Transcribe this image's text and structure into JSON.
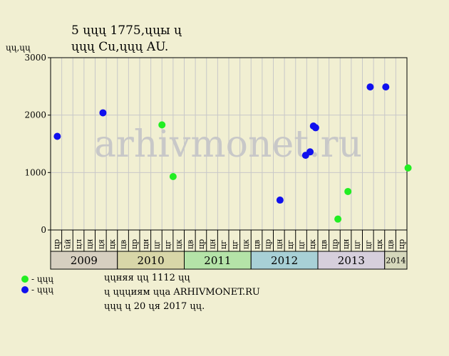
{
  "title": {
    "line1": "5 ųųų 1775,ųųы ų",
    "line2": "ųųų Cu,ųųų AU."
  },
  "legend": {
    "items": [
      {
        "label": "- ųųų",
        "color": "#22ee22"
      },
      {
        "label": "- ųųų",
        "color": "#1010ee"
      }
    ]
  },
  "notes": [
    "ųųняя ųų 1112 ųų",
    "ų ųųųиям ųųа ARHIVMONET.RU",
    "ųųų ų 20 ųя 2017 ųų."
  ],
  "watermark": "arhivmonet.ru",
  "colors": {
    "background": "#f1efd2",
    "grid": "#c8c8c8",
    "green": "#22ee22",
    "blue": "#1010ee",
    "watermark": "#c8c8c8"
  },
  "chart_data": {
    "type": "scatter",
    "ylabel": "ųų,ųų",
    "ylim": [
      0,
      3000
    ],
    "yticks": [
      0,
      1000,
      2000,
      3000
    ],
    "grid": true,
    "month_labels": [
      "цр",
      "ūй",
      "цл",
      "цн",
      "ця",
      "цк",
      "цв",
      "цр",
      "цн",
      "цг",
      "цг",
      "цк",
      "цв",
      "цр",
      "цн",
      "цг",
      "цг",
      "цк",
      "цв",
      "цр",
      "цн",
      "цг",
      "цг",
      "цк",
      "цв",
      "цр",
      "цн",
      "цг",
      "цг",
      "цк",
      "цв",
      "цр"
    ],
    "years": [
      {
        "label": "2009",
        "start": 0,
        "span": 6,
        "color": "#d6cfc0"
      },
      {
        "label": "2010",
        "start": 6,
        "span": 6,
        "color": "#d8d6a8"
      },
      {
        "label": "2011",
        "start": 12,
        "span": 6,
        "color": "#b4e3a8"
      },
      {
        "label": "2012",
        "start": 18,
        "span": 6,
        "color": "#a8d0d6"
      },
      {
        "label": "2013",
        "start": 24,
        "span": 6,
        "color": "#d6cfdc"
      },
      {
        "label": "2014",
        "start": 30,
        "span": 2,
        "color": "#d6d8bc"
      }
    ],
    "series": [
      {
        "color": "#22ee22",
        "points": [
          {
            "x": 9.5,
            "y": 1830
          },
          {
            "x": 10.5,
            "y": 930
          },
          {
            "x": 25.3,
            "y": 190
          },
          {
            "x": 26.2,
            "y": 670
          },
          {
            "x": 31.6,
            "y": 1080
          }
        ]
      },
      {
        "color": "#1010ee",
        "points": [
          {
            "x": 0.1,
            "y": 1630
          },
          {
            "x": 4.2,
            "y": 2040
          },
          {
            "x": 20.1,
            "y": 520
          },
          {
            "x": 22.4,
            "y": 1300
          },
          {
            "x": 22.8,
            "y": 1360
          },
          {
            "x": 23.1,
            "y": 1810
          },
          {
            "x": 23.3,
            "y": 1780
          },
          {
            "x": 28.2,
            "y": 2490
          },
          {
            "x": 29.6,
            "y": 2490
          }
        ]
      }
    ]
  }
}
